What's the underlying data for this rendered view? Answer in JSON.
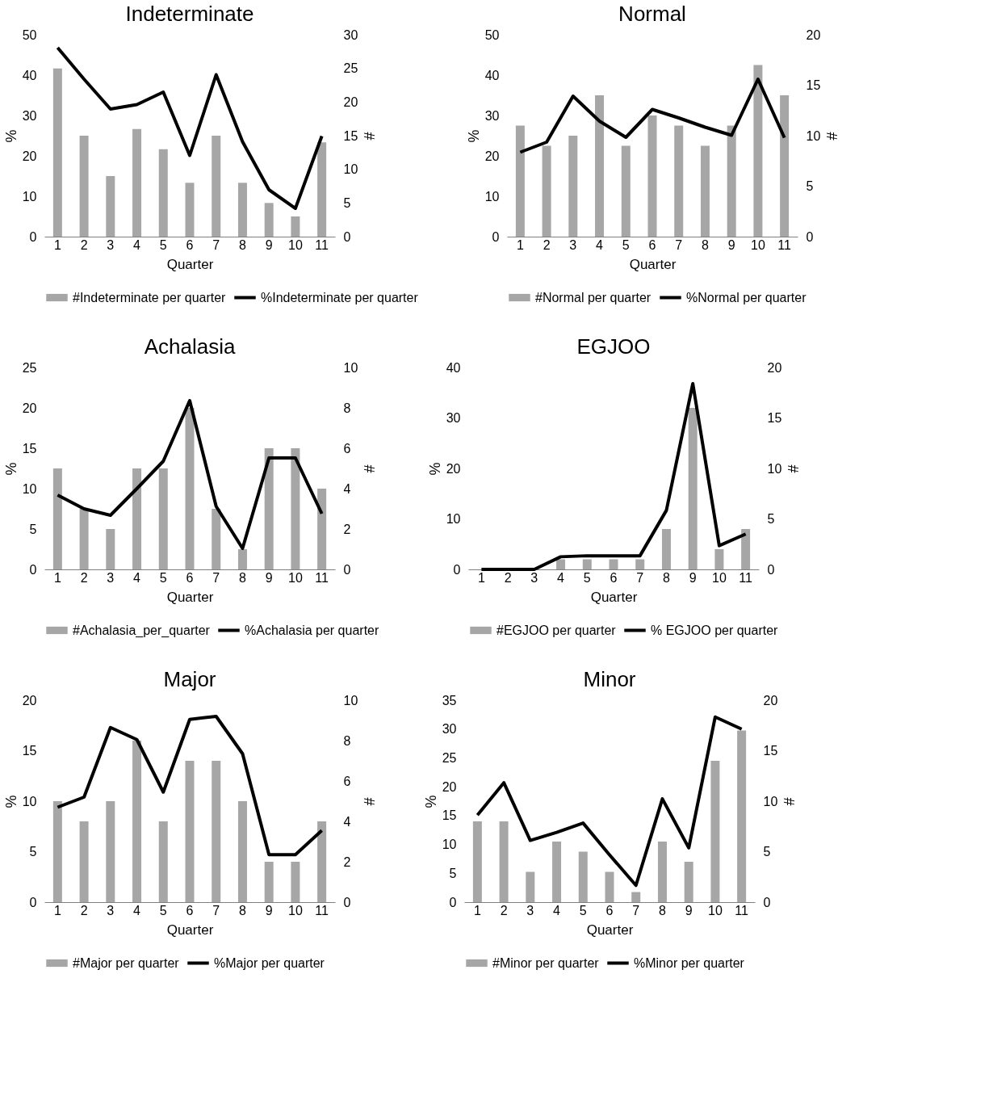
{
  "chart_data": [
    {
      "type": "bar",
      "title": "Indeterminate",
      "xlabel": "Quarter",
      "ylabel": "%",
      "y2label": "#",
      "categories": [
        "1",
        "2",
        "3",
        "4",
        "5",
        "6",
        "7",
        "8",
        "9",
        "10",
        "11"
      ],
      "ylim": [
        0,
        50
      ],
      "yticks": [
        0,
        10,
        20,
        30,
        40,
        50
      ],
      "y2lim": [
        0,
        30
      ],
      "y2ticks": [
        0,
        5,
        10,
        15,
        20,
        25,
        30
      ],
      "grid": false,
      "legend": "bottom",
      "series": [
        {
          "name": "#Indeterminate per quarter",
          "axis": "y2",
          "color": "#a6a6a6",
          "values": [
            25,
            15,
            9,
            16,
            13,
            8,
            15,
            8,
            5,
            3,
            14
          ]
        },
        {
          "name": "%Indeterminate per quarter",
          "type": "line",
          "axis": "y",
          "color": "#000000",
          "values": [
            46.8,
            39,
            31.6,
            32.7,
            35.8,
            20.1,
            40.1,
            23.5,
            11.6,
            7,
            24.9
          ]
        }
      ]
    },
    {
      "type": "bar",
      "title": "Normal",
      "xlabel": "Quarter",
      "ylabel": "%",
      "y2label": "#",
      "categories": [
        "1",
        "2",
        "3",
        "4",
        "5",
        "6",
        "7",
        "8",
        "9",
        "10",
        "11"
      ],
      "ylim": [
        0,
        50
      ],
      "yticks": [
        0,
        10,
        20,
        30,
        40,
        50
      ],
      "y2lim": [
        0,
        20
      ],
      "y2ticks": [
        0,
        5,
        10,
        15,
        20
      ],
      "grid": false,
      "legend": "bottom",
      "series": [
        {
          "name": "#Normal per quarter",
          "axis": "y2",
          "color": "#a6a6a6",
          "values": [
            11,
            9,
            10,
            14,
            9,
            12,
            11,
            9,
            11,
            17,
            14
          ]
        },
        {
          "name": "%Normal per quarter",
          "type": "line",
          "axis": "y",
          "color": "#000000",
          "values": [
            20.9,
            23.4,
            34.8,
            28.6,
            24.6,
            31.5,
            29.4,
            27.1,
            25.1,
            39,
            24.5
          ]
        }
      ]
    },
    {
      "type": "bar",
      "title": "Achalasia",
      "xlabel": "Quarter",
      "ylabel": "%",
      "y2label": "#",
      "categories": [
        "1",
        "2",
        "3",
        "4",
        "5",
        "6",
        "7",
        "8",
        "9",
        "10",
        "11"
      ],
      "ylim": [
        0,
        25
      ],
      "yticks": [
        0,
        5,
        10,
        15,
        20,
        25
      ],
      "y2lim": [
        0,
        10
      ],
      "y2ticks": [
        0,
        2,
        4,
        6,
        8,
        10
      ],
      "grid": false,
      "legend": "bottom",
      "series": [
        {
          "name": "#Achalasia_per_quarter",
          "axis": "y2",
          "color": "#a6a6a6",
          "values": [
            5,
            3,
            2,
            5,
            5,
            8,
            3,
            1,
            6,
            6,
            4
          ]
        },
        {
          "name": "%Achalasia per quarter",
          "type": "line",
          "axis": "y",
          "color": "#000000",
          "values": [
            9.2,
            7.5,
            6.7,
            10,
            13.4,
            20.9,
            7.8,
            2.6,
            13.8,
            13.8,
            6.9
          ]
        }
      ]
    },
    {
      "type": "bar",
      "title": "EGJOO",
      "xlabel": "Quarter",
      "ylabel": "%",
      "y2label": "#",
      "categories": [
        "1",
        "2",
        "3",
        "4",
        "5",
        "6",
        "7",
        "8",
        "9",
        "10",
        "11"
      ],
      "ylim": [
        0,
        40
      ],
      "yticks": [
        0,
        10,
        20,
        30,
        40
      ],
      "y2lim": [
        0,
        20
      ],
      "y2ticks": [
        0,
        5,
        10,
        15,
        20
      ],
      "grid": false,
      "legend": "bottom",
      "series": [
        {
          "name": "#EGJOO per quarter",
          "axis": "y2",
          "color": "#a6a6a6",
          "values": [
            0,
            0,
            0,
            1,
            1,
            1,
            1,
            4,
            16,
            2,
            4
          ]
        },
        {
          "name": "% EGJOO per quarter",
          "type": "line",
          "axis": "y",
          "color": "#000000",
          "values": [
            0,
            0,
            0,
            2.5,
            2.7,
            2.7,
            2.7,
            11.7,
            36.8,
            4.7,
            7
          ]
        }
      ]
    },
    {
      "type": "bar",
      "title": "Major",
      "xlabel": "Quarter",
      "ylabel": "%",
      "y2label": "#",
      "categories": [
        "1",
        "2",
        "3",
        "4",
        "5",
        "6",
        "7",
        "8",
        "9",
        "10",
        "11"
      ],
      "ylim": [
        0,
        20
      ],
      "yticks": [
        0,
        5,
        10,
        15,
        20
      ],
      "y2lim": [
        0,
        10
      ],
      "y2ticks": [
        0,
        2,
        4,
        6,
        8,
        10
      ],
      "grid": false,
      "legend": "bottom",
      "series": [
        {
          "name": "#Major per quarter",
          "axis": "y2",
          "color": "#a6a6a6",
          "values": [
            5,
            4,
            5,
            8,
            4,
            7,
            7,
            5,
            2,
            2,
            4
          ]
        },
        {
          "name": "%Major per quarter",
          "type": "line",
          "axis": "y",
          "color": "#000000",
          "values": [
            9.4,
            10.4,
            17.3,
            16.1,
            10.9,
            18.1,
            18.4,
            14.7,
            4.7,
            4.7,
            7.1
          ]
        }
      ]
    },
    {
      "type": "bar",
      "title": "Minor",
      "xlabel": "Quarter",
      "ylabel": "%",
      "y2label": "#",
      "categories": [
        "1",
        "2",
        "3",
        "4",
        "5",
        "6",
        "7",
        "8",
        "9",
        "10",
        "11"
      ],
      "ylim": [
        0,
        35
      ],
      "yticks": [
        0,
        5,
        10,
        15,
        20,
        25,
        30,
        35
      ],
      "y2lim": [
        0,
        20
      ],
      "y2ticks": [
        0,
        5,
        10,
        15,
        20
      ],
      "grid": false,
      "legend": "bottom",
      "series": [
        {
          "name": "#Minor per quarter",
          "axis": "y2",
          "color": "#a6a6a6",
          "values": [
            8,
            8,
            3,
            6,
            5,
            3,
            1,
            6,
            4,
            14,
            17
          ]
        },
        {
          "name": "%Minor per quarter",
          "type": "line",
          "axis": "y",
          "color": "#000000",
          "values": [
            15.1,
            20.7,
            10.7,
            12.1,
            13.7,
            8.2,
            2.9,
            17.9,
            9.4,
            32.1,
            30
          ]
        }
      ]
    }
  ]
}
